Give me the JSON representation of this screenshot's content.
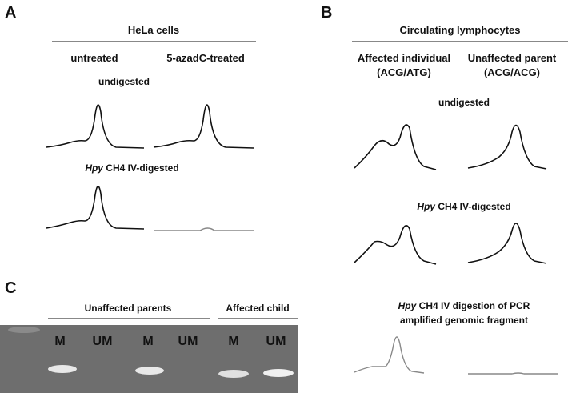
{
  "panel_a": {
    "label": "A",
    "title": "HeLa cells",
    "columns": [
      "untreated",
      "5-azadC-treated"
    ],
    "row_1": "undigested",
    "row_2": {
      "italic": "Hpy",
      "text": "CH4 IV-digested"
    }
  },
  "panel_b": {
    "label": "B",
    "title": "Circulating lymphocytes",
    "columns": [
      {
        "name": "Affected individual",
        "genotype": "(ACG/ATG)"
      },
      {
        "name": "Unaffected parent",
        "genotype": "(ACG/ACG)"
      }
    ],
    "row_1": "undigested",
    "row_2": {
      "italic": "Hpy",
      "text": "CH4 IV-digested"
    },
    "row_3": {
      "italic": "Hpy",
      "line_1": "CH4 IV digestion of PCR",
      "line_2": "amplified genomic fragment"
    }
  },
  "panel_c": {
    "label": "C",
    "groups": [
      "Unaffected parents",
      "Affected child"
    ],
    "lanes": [
      "M",
      "UM",
      "M",
      "UM",
      "M",
      "UM"
    ]
  }
}
